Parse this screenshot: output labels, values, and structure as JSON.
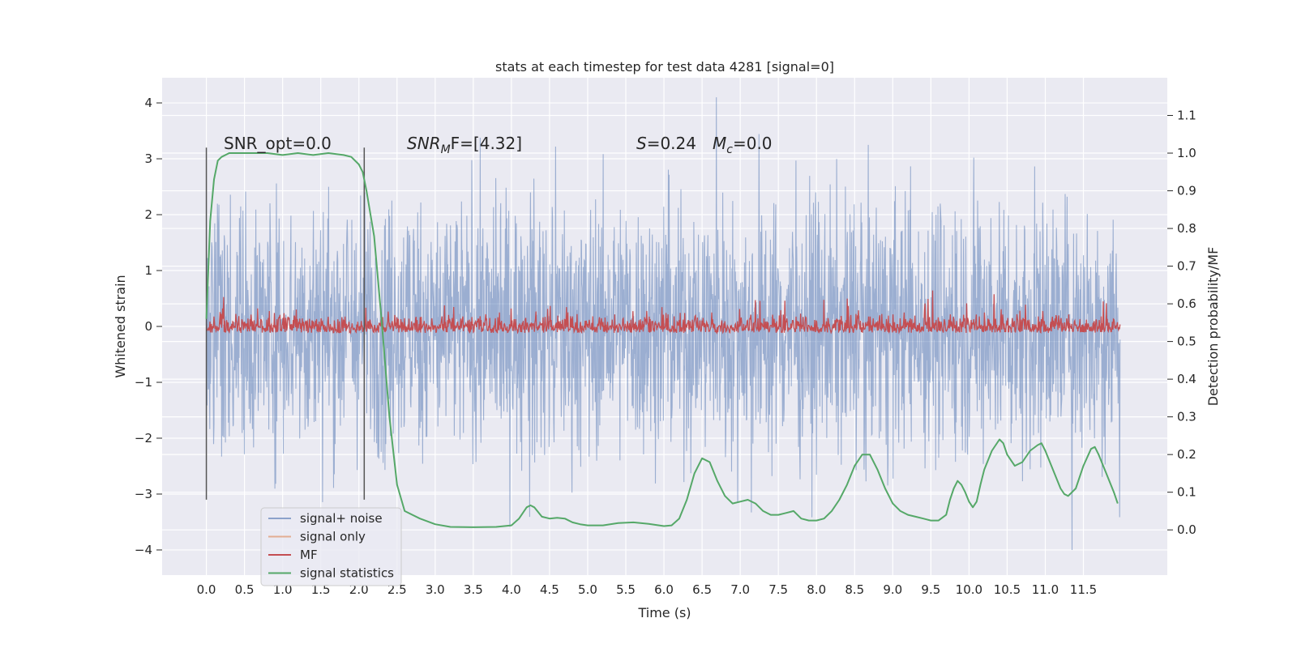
{
  "chart_data": {
    "type": "line",
    "title": "stats at each timestep for test data 4281 [signal=0]",
    "xlabel": "Time (s)",
    "ylabel": "Whitened strain",
    "y2label": "Detection probability/MF",
    "xlim": [
      -0.58,
      12.6
    ],
    "ylim": [
      -4.45,
      4.45
    ],
    "y2lim": [
      -0.12,
      1.2
    ],
    "grid": true,
    "legend_position": "lower-left",
    "x_ticks": [
      "0.0",
      "0.5",
      "1.0",
      "1.5",
      "2.0",
      "2.5",
      "3.0",
      "3.5",
      "4.0",
      "4.5",
      "5.0",
      "5.5",
      "6.0",
      "6.5",
      "7.0",
      "7.5",
      "8.0",
      "8.5",
      "9.0",
      "9.5",
      "10.0",
      "10.5",
      "11.0",
      "11.5"
    ],
    "y_ticks": [
      4,
      3,
      2,
      1,
      0,
      -1,
      -2,
      -3,
      -4
    ],
    "y_tick_labels": [
      "4",
      "3",
      "2",
      "1",
      "0",
      "−1",
      "−2",
      "−3",
      "−4"
    ],
    "y2_ticks": [
      "1.1",
      "1.0",
      "0.9",
      "0.8",
      "0.7",
      "0.6",
      "0.5",
      "0.4",
      "0.3",
      "0.2",
      "0.1",
      "0.0"
    ],
    "annotations": {
      "snr_opt": "SNR_opt=0.0",
      "snr_mf_main": "SNR",
      "snr_mf_sub": "M",
      "snr_mf_rest": "F=[4.32]",
      "s_main": "S",
      "s_rest": "=0.24",
      "mc_main": "M",
      "mc_sub": "c",
      "mc_rest": "=0.0"
    },
    "vertical_lines_x": [
      0.0,
      2.07
    ],
    "series": [
      {
        "name": "signal+ noise",
        "color": "#4c72b0",
        "kind": "noise",
        "x_range": [
          0.0,
          11.98
        ],
        "y_range": [
          -4.0,
          4.1
        ]
      },
      {
        "name": "signal only",
        "color": "#dd8452",
        "kind": "flat",
        "x_range": [
          0.0,
          11.98
        ],
        "y_value": 0.0
      },
      {
        "name": "MF",
        "color": "#c44e52",
        "kind": "mf",
        "axis": "right",
        "x_range": [
          0.0,
          11.98
        ],
        "y_range": [
          0.51,
          0.64
        ]
      },
      {
        "name": "signal statistics",
        "color": "#55a868",
        "kind": "line",
        "axis": "right",
        "x": [
          0.0,
          0.05,
          0.1,
          0.15,
          0.2,
          0.3,
          0.5,
          0.8,
          1.0,
          1.2,
          1.4,
          1.6,
          1.8,
          1.9,
          2.0,
          2.05,
          2.1,
          2.2,
          2.3,
          2.4,
          2.5,
          2.6,
          2.8,
          3.0,
          3.2,
          3.5,
          3.8,
          4.0,
          4.1,
          4.2,
          4.25,
          4.3,
          4.4,
          4.5,
          4.6,
          4.7,
          4.8,
          4.9,
          5.0,
          5.2,
          5.4,
          5.6,
          5.8,
          6.0,
          6.1,
          6.2,
          6.3,
          6.4,
          6.5,
          6.6,
          6.7,
          6.8,
          6.9,
          7.0,
          7.1,
          7.2,
          7.3,
          7.4,
          7.5,
          7.6,
          7.7,
          7.8,
          7.9,
          8.0,
          8.1,
          8.2,
          8.3,
          8.4,
          8.5,
          8.6,
          8.7,
          8.8,
          8.9,
          9.0,
          9.1,
          9.2,
          9.3,
          9.4,
          9.5,
          9.6,
          9.7,
          9.75,
          9.8,
          9.85,
          9.9,
          9.95,
          10.0,
          10.05,
          10.1,
          10.15,
          10.2,
          10.3,
          10.4,
          10.45,
          10.5,
          10.6,
          10.7,
          10.8,
          10.9,
          10.95,
          11.0,
          11.1,
          11.2,
          11.25,
          11.3,
          11.4,
          11.5,
          11.6,
          11.65,
          11.7,
          11.8,
          11.9,
          11.95
        ],
        "y": [
          0.56,
          0.82,
          0.93,
          0.98,
          0.99,
          1.0,
          1.0,
          1.0,
          0.995,
          1.0,
          0.995,
          1.0,
          0.995,
          0.99,
          0.97,
          0.95,
          0.9,
          0.78,
          0.55,
          0.3,
          0.12,
          0.05,
          0.03,
          0.015,
          0.008,
          0.007,
          0.008,
          0.012,
          0.03,
          0.06,
          0.065,
          0.06,
          0.035,
          0.03,
          0.032,
          0.03,
          0.02,
          0.015,
          0.012,
          0.012,
          0.018,
          0.02,
          0.016,
          0.01,
          0.012,
          0.03,
          0.08,
          0.15,
          0.19,
          0.18,
          0.13,
          0.09,
          0.07,
          0.075,
          0.08,
          0.07,
          0.05,
          0.04,
          0.04,
          0.045,
          0.05,
          0.03,
          0.025,
          0.025,
          0.03,
          0.05,
          0.08,
          0.12,
          0.17,
          0.2,
          0.2,
          0.16,
          0.11,
          0.07,
          0.05,
          0.04,
          0.035,
          0.03,
          0.025,
          0.025,
          0.04,
          0.08,
          0.11,
          0.13,
          0.12,
          0.1,
          0.075,
          0.06,
          0.075,
          0.12,
          0.16,
          0.21,
          0.24,
          0.23,
          0.2,
          0.17,
          0.18,
          0.21,
          0.225,
          0.23,
          0.21,
          0.16,
          0.11,
          0.095,
          0.09,
          0.11,
          0.17,
          0.215,
          0.22,
          0.2,
          0.15,
          0.1,
          0.07
        ]
      }
    ]
  }
}
